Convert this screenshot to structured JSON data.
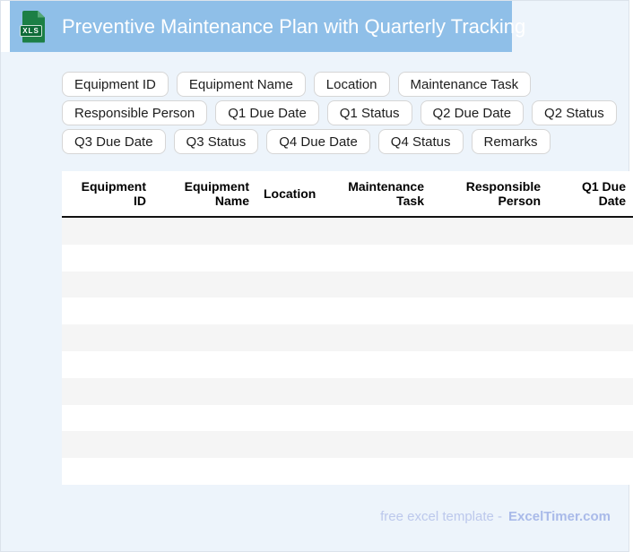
{
  "header": {
    "title": "Preventive Maintenance Plan with Quarterly Tracking",
    "file_icon_label": "XLS"
  },
  "chips": {
    "row1": [
      "Equipment ID",
      "Equipment Name",
      "Location",
      "Maintenance Task"
    ],
    "row2": [
      "Responsible Person",
      "Q1 Due Date",
      "Q1 Status",
      "Q2 Due Date",
      "Q2 Status"
    ],
    "row3": [
      "Q3 Due Date",
      "Q3 Status",
      "Q4 Due Date",
      "Q4 Status",
      "Remarks"
    ]
  },
  "table": {
    "columns": [
      "Equipment ID",
      "Equipment Name",
      "Location",
      "Maintenance Task",
      "Responsible Person",
      "Q1 Due Date"
    ],
    "row_count": 10,
    "rows_empty": true
  },
  "footer": {
    "prefix": "free excel template -",
    "brand": "ExcelTimer.com"
  },
  "colors": {
    "header_band": "#8fbfe8",
    "page_background": "#edf4fb",
    "icon_green": "#1c7f45",
    "icon_band_green": "#0e6b37",
    "row_stripe": "#f5f5f5",
    "header_border": "#111111",
    "footer_text": "#bcc8ec",
    "footer_brand": "#a9bae9"
  }
}
